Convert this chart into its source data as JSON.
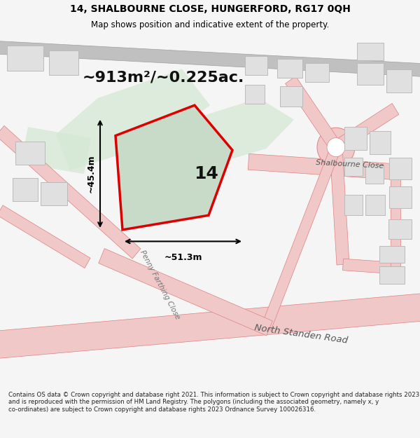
{
  "title_line1": "14, SHALBOURNE CLOSE, HUNGERFORD, RG17 0QH",
  "title_line2": "Map shows position and indicative extent of the property.",
  "area_label": "~913m²/~0.225ac.",
  "width_label": "~51.3m",
  "height_label": "~45.4m",
  "number_label": "14",
  "road_label1": "Shalbourne Close",
  "road_label2": "North Standen Road",
  "road_label3": "Penny Farthing Close",
  "footer_text": "Contains OS data © Crown copyright and database right 2021. This information is subject to Crown copyright and database rights 2023 and is reproduced with the permission of HM Land Registry. The polygons (including the associated geometry, namely x, y co-ordinates) are subject to Crown copyright and database rights 2023 Ordnance Survey 100026316.",
  "bg_color": "#f5f5f5",
  "map_bg": "#ffffff",
  "plot_fill": "#c8dbc8",
  "plot_edge": "#dd0000",
  "road_color": "#f0c8c8",
  "road_edge": "#e08080",
  "building_fill": "#e0e0e0",
  "building_edge": "#bbbbbb",
  "green_fill": "#d4e8d4",
  "dark_road": "#c0c0c0"
}
